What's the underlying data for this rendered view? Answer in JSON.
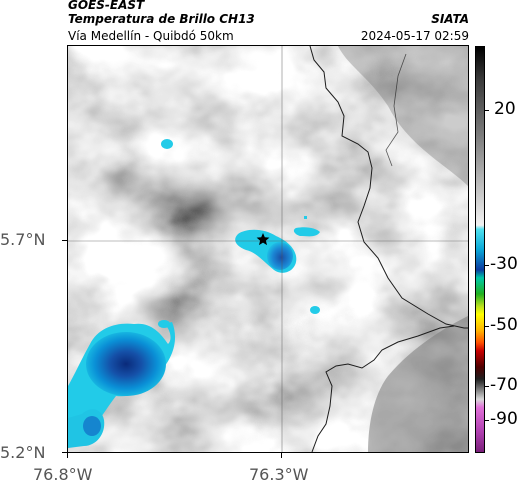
{
  "header": {
    "satellite": "GOES-EAST",
    "product": "Temperatura de Brillo CH13",
    "route": "Vía Medellín - Quibdó 50km",
    "agency": "SIATA",
    "datetime": "2024-05-17 02:59"
  },
  "axes": {
    "lat_ticks": [
      "5.7°N",
      "5.2°N"
    ],
    "lon_ticks": [
      "76.8°W",
      "76.3°W"
    ]
  },
  "colorbar": {
    "ticks": [
      "20",
      "-30",
      "-50",
      "-70",
      "-90"
    ]
  },
  "marker": {
    "icon": "star-icon"
  }
}
